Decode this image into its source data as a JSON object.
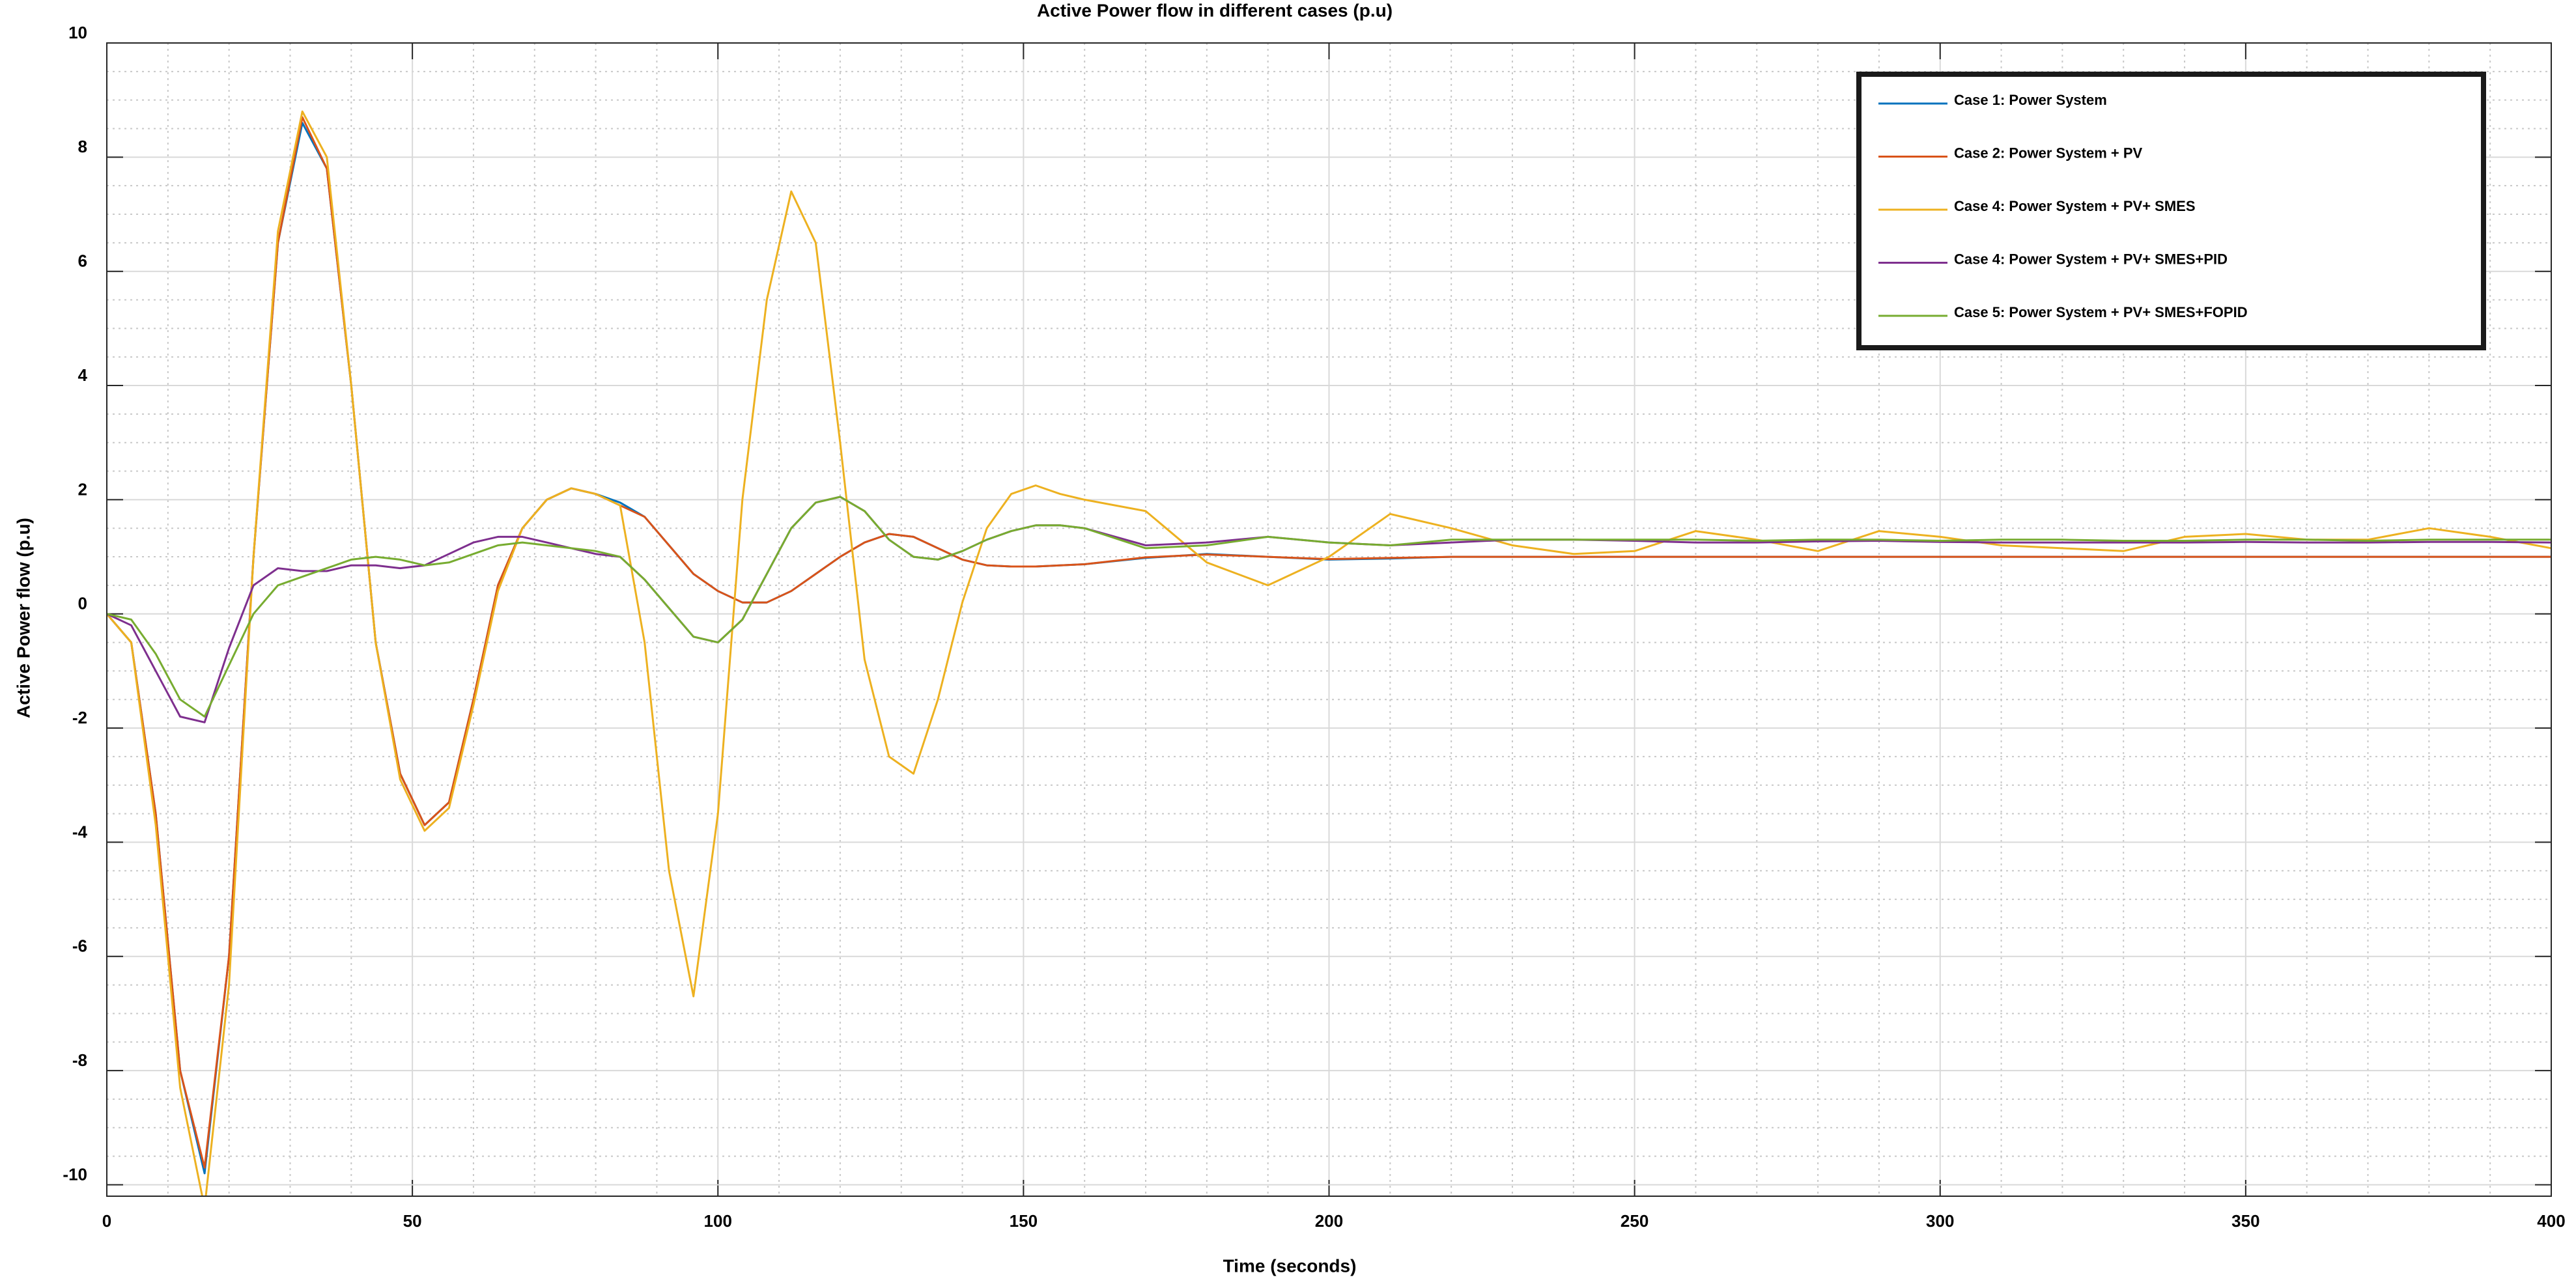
{
  "chart_data": {
    "type": "line",
    "title": "Active Power flow in different cases (p.u)",
    "xlabel": "Time (seconds)",
    "ylabel": "Active Power flow (p.u)",
    "x": [
      0,
      4,
      8,
      12,
      16,
      20,
      24,
      28,
      32,
      36,
      40,
      44,
      48,
      52,
      56,
      60,
      64,
      68,
      72,
      76,
      80,
      84,
      88,
      92,
      96,
      100,
      104,
      108,
      112,
      116,
      120,
      124,
      128,
      132,
      136,
      140,
      144,
      148,
      152,
      156,
      160,
      170,
      180,
      190,
      200,
      210,
      220,
      230,
      240,
      250,
      260,
      270,
      280,
      290,
      300,
      310,
      320,
      330,
      340,
      350,
      360,
      370,
      380,
      390,
      400
    ],
    "series": [
      {
        "name": "Case 1: Power System",
        "color": "#0072bd",
        "values": [
          0,
          -0.5,
          -3.5,
          -8.0,
          -9.8,
          -6.0,
          1.0,
          6.5,
          8.6,
          7.8,
          4.0,
          -0.5,
          -2.8,
          -3.7,
          -3.3,
          -1.5,
          0.5,
          1.5,
          2.0,
          2.2,
          2.1,
          1.95,
          1.7,
          1.2,
          0.7,
          0.4,
          0.2,
          0.2,
          0.4,
          0.7,
          1.0,
          1.25,
          1.4,
          1.35,
          1.15,
          0.95,
          0.85,
          0.83,
          0.83,
          0.85,
          0.87,
          0.98,
          1.05,
          1.0,
          0.95,
          0.97,
          1.0,
          1.0,
          1.0,
          1.0,
          1.0,
          1.0,
          1.0,
          1.0,
          1.0,
          1.0,
          1.0,
          1.0,
          1.0,
          1.0,
          1.0,
          1.0,
          1.0,
          1.0,
          1.0
        ]
      },
      {
        "name": "Case 2: Power System + PV",
        "color": "#d95319",
        "values": [
          0,
          -0.5,
          -3.5,
          -8.0,
          -9.7,
          -6.0,
          1.0,
          6.5,
          8.7,
          7.8,
          4.0,
          -0.5,
          -2.8,
          -3.7,
          -3.3,
          -1.5,
          0.5,
          1.5,
          2.0,
          2.2,
          2.1,
          1.9,
          1.7,
          1.2,
          0.7,
          0.4,
          0.2,
          0.2,
          0.4,
          0.7,
          1.0,
          1.25,
          1.4,
          1.35,
          1.15,
          0.95,
          0.85,
          0.83,
          0.83,
          0.85,
          0.87,
          0.99,
          1.04,
          1.0,
          0.96,
          0.98,
          1.0,
          1.0,
          1.0,
          1.0,
          1.0,
          1.0,
          1.0,
          1.0,
          1.0,
          1.0,
          1.0,
          1.0,
          1.0,
          1.0,
          1.0,
          1.0,
          1.0,
          1.0,
          1.0
        ]
      },
      {
        "name": "Case 4: Power System + PV+ SMES",
        "color": "#edb120",
        "values": [
          0,
          -0.5,
          -3.7,
          -8.3,
          -10.4,
          -6.5,
          1,
          6.7,
          8.8,
          8,
          4,
          -0.5,
          -2.9,
          -3.8,
          -3.4,
          -1.6,
          0.4,
          1.5,
          2.0,
          2.2,
          2.1,
          1.9,
          -0.5,
          -4.5,
          -6.7,
          -3.5,
          2,
          5.5,
          7.4,
          6.5,
          3,
          -0.8,
          -2.5,
          -2.8,
          -1.5,
          0.2,
          1.5,
          2.1,
          2.25,
          2.1,
          2.0,
          1.8,
          0.9,
          0.5,
          1.0,
          1.75,
          1.5,
          1.2,
          1.05,
          1.1,
          1.45,
          1.3,
          1.1,
          1.45,
          1.35,
          1.2,
          1.15,
          1.1,
          1.35,
          1.4,
          1.3,
          1.3,
          1.5,
          1.35,
          1.15
        ]
      },
      {
        "name": "Case 4: Power System + PV+ SMES+PID",
        "color": "#7e2f8e",
        "values": [
          0,
          -0.2,
          -1.0,
          -1.8,
          -1.9,
          -0.6,
          0.5,
          0.8,
          0.75,
          0.75,
          0.85,
          0.85,
          0.8,
          0.85,
          1.05,
          1.25,
          1.35,
          1.35,
          1.25,
          1.15,
          1.05,
          1.0,
          0.6,
          0.1,
          -0.4,
          -0.5,
          -0.1,
          0.7,
          1.5,
          1.95,
          2.05,
          1.8,
          1.3,
          1.0,
          0.95,
          1.1,
          1.3,
          1.45,
          1.55,
          1.55,
          1.5,
          1.2,
          1.25,
          1.35,
          1.25,
          1.2,
          1.25,
          1.3,
          1.3,
          1.28,
          1.25,
          1.25,
          1.27,
          1.28,
          1.26,
          1.25,
          1.25,
          1.25,
          1.25,
          1.26,
          1.25,
          1.25,
          1.26,
          1.26,
          1.25
        ]
      },
      {
        "name": "Case 5: Power System + PV+ SMES+FOPID",
        "color": "#77ac30",
        "values": [
          0,
          -0.1,
          -0.7,
          -1.5,
          -1.8,
          -0.9,
          0.0,
          0.5,
          0.65,
          0.8,
          0.95,
          1.0,
          0.95,
          0.85,
          0.9,
          1.05,
          1.2,
          1.25,
          1.2,
          1.15,
          1.1,
          1.0,
          0.6,
          0.1,
          -0.4,
          -0.5,
          -0.1,
          0.7,
          1.5,
          1.95,
          2.05,
          1.8,
          1.3,
          1.0,
          0.95,
          1.1,
          1.3,
          1.45,
          1.55,
          1.55,
          1.5,
          1.15,
          1.2,
          1.35,
          1.25,
          1.2,
          1.3,
          1.3,
          1.3,
          1.3,
          1.3,
          1.28,
          1.3,
          1.3,
          1.28,
          1.3,
          1.3,
          1.28,
          1.28,
          1.3,
          1.3,
          1.28,
          1.3,
          1.3,
          1.3
        ]
      }
    ],
    "xlim": [
      0,
      400
    ],
    "xticks": [
      0,
      50,
      100,
      150,
      200,
      250,
      300,
      350,
      400
    ],
    "ylim": [
      -10.2,
      10
    ],
    "yticks": [
      -10,
      -8,
      -6,
      -4,
      -2,
      0,
      2,
      4,
      6,
      8,
      10
    ],
    "grid": true,
    "minor_grid": true,
    "legend": "upper right"
  }
}
